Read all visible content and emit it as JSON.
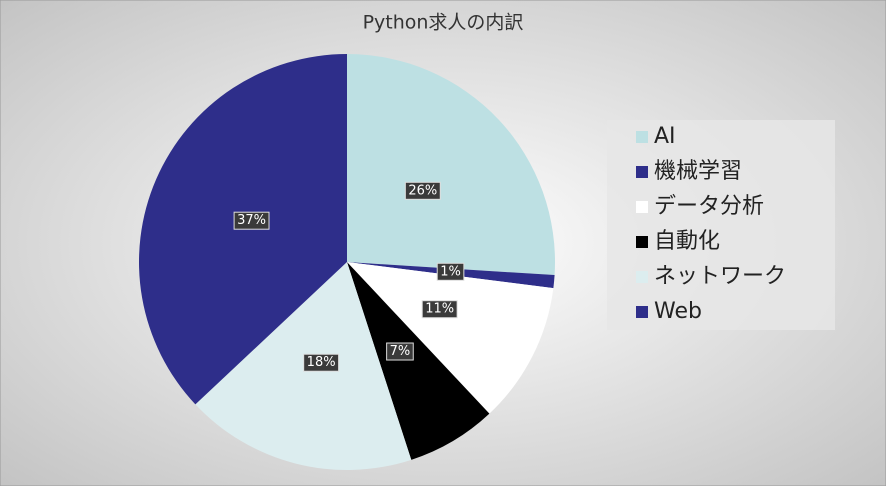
{
  "chart_data": {
    "type": "pie",
    "title": "Python求人の内訳",
    "categories": [
      "AI",
      "機械学習",
      "データ分析",
      "自動化",
      "ネットワーク",
      "Web"
    ],
    "values": [
      26,
      1,
      11,
      7,
      18,
      37
    ],
    "value_labels": [
      "26%",
      "1%",
      "11%",
      "7%",
      "18%",
      "37%"
    ],
    "colors": [
      "#bde0e3",
      "#2e2e8a",
      "#ffffff",
      "#000000",
      "#dcedef",
      "#2e2e8a"
    ],
    "legend": "right"
  }
}
